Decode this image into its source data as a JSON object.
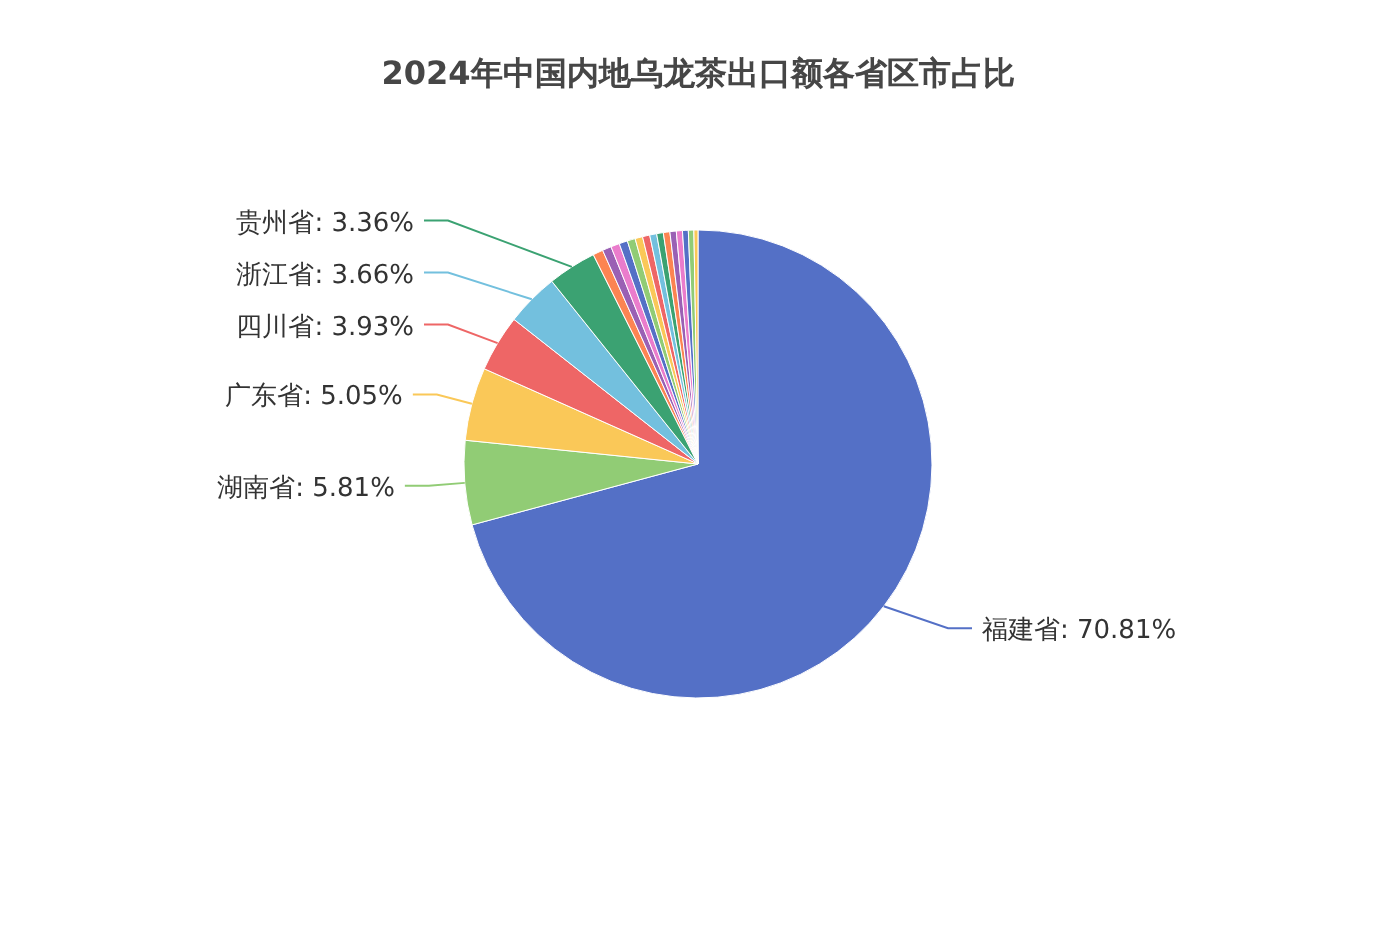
{
  "chart_data": {
    "type": "pie",
    "title": "2024年中国内地乌龙茶出口额各省区市占比",
    "categories": [
      "福建省",
      "湖南省",
      "广东省",
      "四川省",
      "浙江省",
      "贵州省",
      null,
      null,
      null,
      null,
      null,
      null,
      null,
      null,
      null,
      null,
      null,
      null,
      null,
      null,
      null
    ],
    "values": [
      70.81,
      5.81,
      5.05,
      3.93,
      3.66,
      3.36,
      0.7,
      0.62,
      0.6,
      0.58,
      0.55,
      0.52,
      0.5,
      0.48,
      0.46,
      0.45,
      0.44,
      0.42,
      0.4,
      0.38,
      0.28
    ],
    "value_labels": [
      ": 70.81%",
      ": 5.81%",
      ": 5.05%",
      ": 3.93%",
      ": 3.66%",
      ": 3.36%",
      null,
      null,
      null,
      null,
      null,
      null,
      null,
      null,
      null,
      null,
      null,
      null,
      null,
      null,
      null
    ],
    "colors": [
      "#5470c6",
      "#91cc75",
      "#fac858",
      "#ee6666",
      "#73c0de",
      "#3ba272",
      "#fc8452",
      "#9a60b4",
      "#ea7ccc",
      "#5470c6",
      "#91cc75",
      "#fac858",
      "#ee6666",
      "#73c0de",
      "#3ba272",
      "#fc8452",
      "#9a60b4",
      "#ea7ccc",
      "#5470c6",
      "#91cc75",
      "#fac858"
    ]
  }
}
